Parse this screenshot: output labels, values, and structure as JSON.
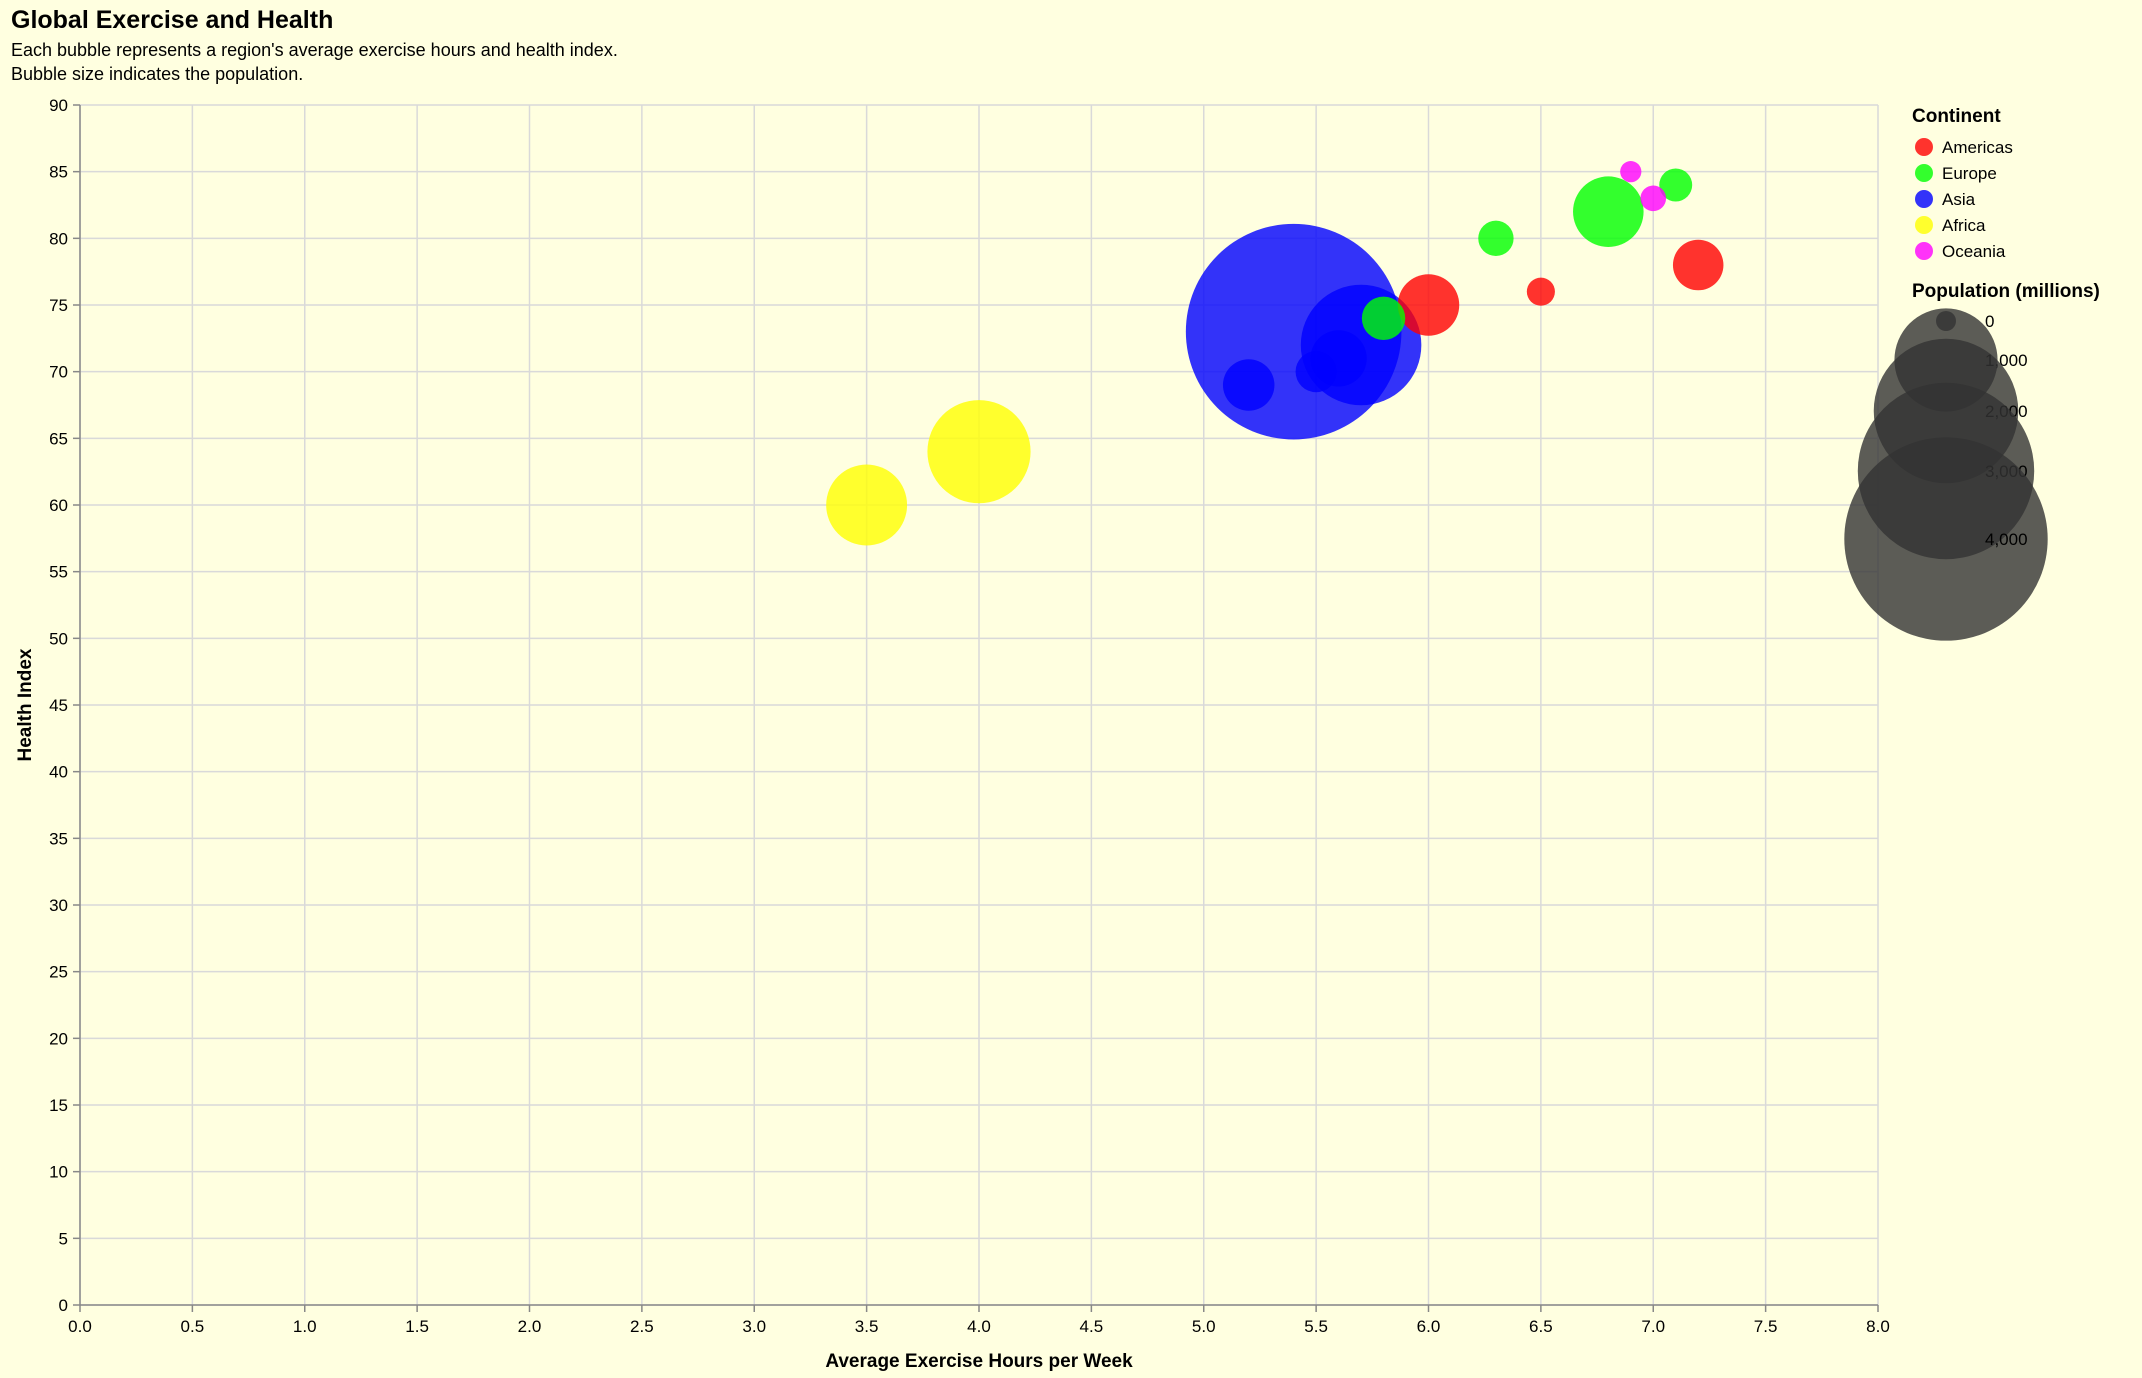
{
  "chart_data": {
    "type": "scatter",
    "title": "Global Exercise and Health",
    "subtitle": [
      "Each bubble represents a region's average exercise hours and health index.",
      "Bubble size indicates the population."
    ],
    "xlabel": "Average Exercise Hours per Week",
    "ylabel": "Health Index",
    "xlim": [
      0,
      8
    ],
    "ylim": [
      0,
      90
    ],
    "x_ticks": [
      "0.0",
      "0.5",
      "1.0",
      "1.5",
      "2.0",
      "2.5",
      "3.0",
      "3.5",
      "4.0",
      "4.5",
      "5.0",
      "5.5",
      "6.0",
      "6.5",
      "7.0",
      "7.5",
      "8.0"
    ],
    "y_ticks": [
      "0",
      "5",
      "10",
      "15",
      "20",
      "25",
      "30",
      "35",
      "40",
      "45",
      "50",
      "55",
      "60",
      "65",
      "70",
      "75",
      "80",
      "85",
      "90"
    ],
    "grid": true,
    "legend_position": "right",
    "color_legend": {
      "title": "Continent",
      "entries": [
        {
          "name": "Americas",
          "color": "#ff0000"
        },
        {
          "name": "Europe",
          "color": "#00ff00"
        },
        {
          "name": "Asia",
          "color": "#0000ff"
        },
        {
          "name": "Africa",
          "color": "#ffff00"
        },
        {
          "name": "Oceania",
          "color": "#ff00ff"
        }
      ]
    },
    "size_legend": {
      "title": "Population (millions)",
      "entries": [
        {
          "label": "0",
          "value": 0
        },
        {
          "label": "1,000",
          "value": 1000
        },
        {
          "label": "2,000",
          "value": 2000
        },
        {
          "label": "3,000",
          "value": 3000
        },
        {
          "label": "4,000",
          "value": 4000
        }
      ]
    },
    "points": [
      {
        "continent": "Americas",
        "x": 6.0,
        "y": 75,
        "population": 330
      },
      {
        "continent": "Americas",
        "x": 6.5,
        "y": 76,
        "population": 38
      },
      {
        "continent": "Americas",
        "x": 7.2,
        "y": 78,
        "population": 210
      },
      {
        "continent": "Europe",
        "x": 5.8,
        "y": 74,
        "population": 145
      },
      {
        "continent": "Europe",
        "x": 6.3,
        "y": 80,
        "population": 83
      },
      {
        "continent": "Europe",
        "x": 6.8,
        "y": 82,
        "population": 447
      },
      {
        "continent": "Europe",
        "x": 7.1,
        "y": 84,
        "population": 67
      },
      {
        "continent": "Asia",
        "x": 5.4,
        "y": 73,
        "population": 4500
      },
      {
        "continent": "Asia",
        "x": 5.7,
        "y": 72,
        "population": 1380
      },
      {
        "continent": "Asia",
        "x": 5.6,
        "y": 71,
        "population": 270
      },
      {
        "continent": "Asia",
        "x": 5.5,
        "y": 70,
        "population": 126
      },
      {
        "continent": "Asia",
        "x": 5.2,
        "y": 69,
        "population": 220
      },
      {
        "continent": "Africa",
        "x": 4.0,
        "y": 64,
        "population": 1000
      },
      {
        "continent": "Africa",
        "x": 3.5,
        "y": 60,
        "population": 600
      },
      {
        "continent": "Oceania",
        "x": 6.9,
        "y": 85,
        "population": 5
      },
      {
        "continent": "Oceania",
        "x": 7.0,
        "y": 83,
        "population": 25
      }
    ]
  }
}
